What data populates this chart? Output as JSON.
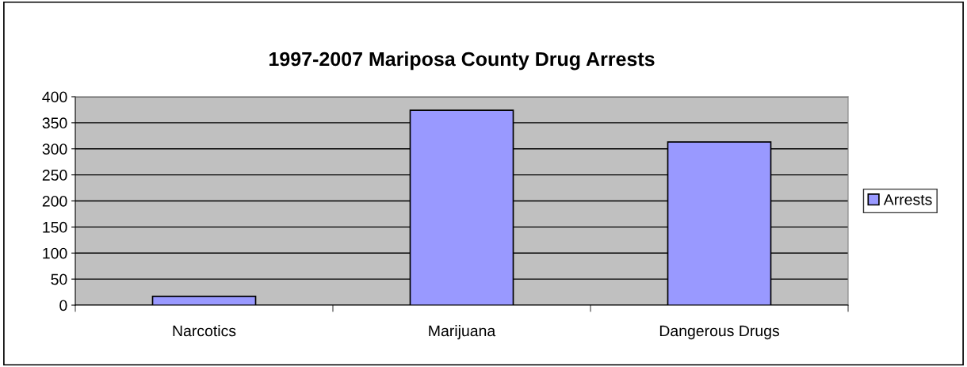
{
  "chart_data": {
    "type": "bar",
    "title": "1997-2007 Mariposa County Drug Arrests",
    "categories": [
      "Narcotics",
      "Marijuana",
      "Dangerous Drugs"
    ],
    "series": [
      {
        "name": "Arrests",
        "color": "#9999ff",
        "values": [
          17,
          374,
          313
        ]
      }
    ],
    "ylim": [
      0,
      400
    ],
    "yticks": [
      0,
      50,
      100,
      150,
      200,
      250,
      300,
      350,
      400
    ],
    "grid": "y",
    "legend": "right"
  }
}
